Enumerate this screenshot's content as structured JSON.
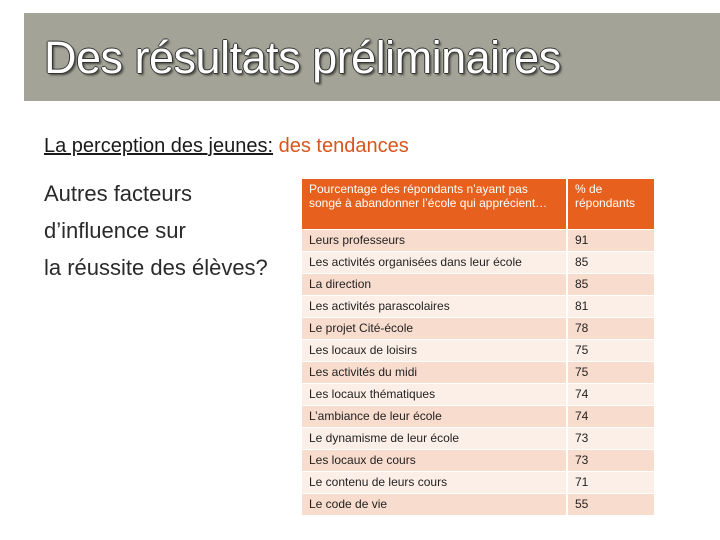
{
  "slide": {
    "title": "Des résultats préliminaires",
    "subtitle_part1": "La perception des jeunes",
    "subtitle_sep": ":",
    "subtitle_part2": "des tendances",
    "side_lines": [
      "Autres facteurs",
      "d’influence sur",
      "la réussite des élèves?"
    ]
  },
  "table": {
    "headers": [
      "Pourcentage des répondants n’ayant pas songé à abandonner l’école qui apprécient…",
      "% de répondants"
    ],
    "rows": [
      [
        "Leurs professeurs",
        "91"
      ],
      [
        "Les activités organisées dans leur école",
        "85"
      ],
      [
        "La direction",
        "85"
      ],
      [
        "Les activités parascolaires",
        "81"
      ],
      [
        "Le projet Cité-école",
        "78"
      ],
      [
        "Les locaux de loisirs",
        "75"
      ],
      [
        "Les activités du midi",
        "75"
      ],
      [
        "Les locaux thématiques",
        "74"
      ],
      [
        "L’ambiance de leur école",
        "74"
      ],
      [
        "Le dynamisme de leur école",
        "73"
      ],
      [
        "Les locaux de cours",
        "73"
      ],
      [
        "Le contenu de leurs cours",
        "71"
      ],
      [
        "Le code de vie",
        "55"
      ]
    ]
  },
  "colors": {
    "title_bar": "#a3a497",
    "accent": "#e8601d",
    "row_odd": "#f8dccd",
    "row_even": "#fcefe7"
  }
}
